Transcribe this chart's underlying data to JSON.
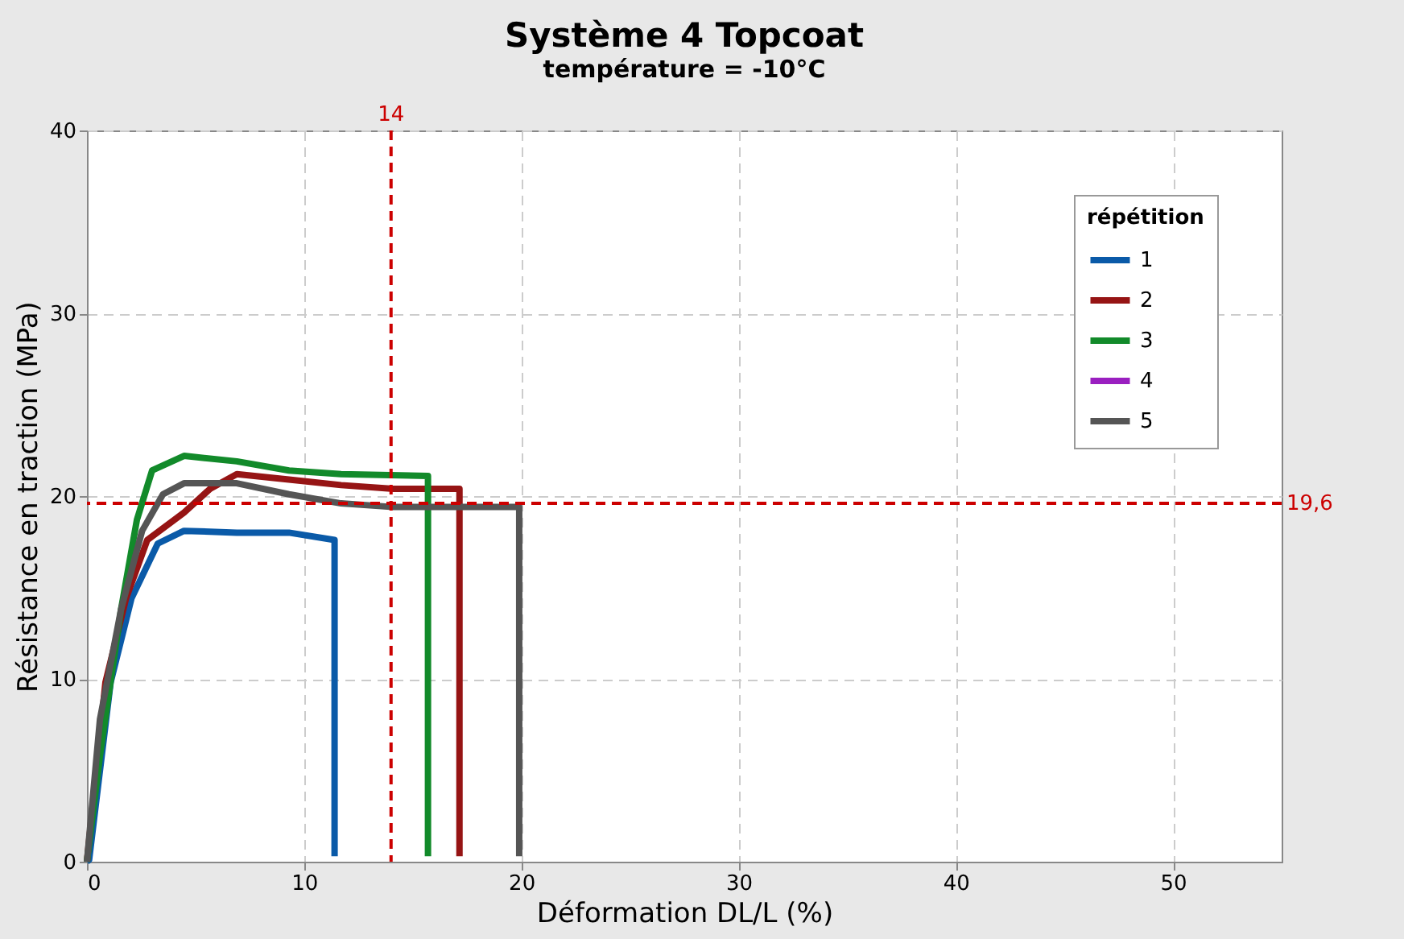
{
  "chart_data": {
    "type": "line",
    "title": "Système 4 Topcoat",
    "subtitle": "température = -10°C",
    "xlabel": "Déformation DL/L (%)",
    "ylabel": "Résistance en traction (MPa)",
    "legend_title": "répétition",
    "xlim": [
      0,
      55
    ],
    "ylim": [
      0,
      40
    ],
    "xticks": [
      0,
      10,
      20,
      30,
      40,
      50
    ],
    "yticks": [
      0,
      10,
      20,
      30,
      40
    ],
    "grid": true,
    "legend": "top right",
    "line_style": "solid",
    "marker": "none",
    "ref_lines": [
      {
        "axis": "x",
        "value": 14,
        "label": "14",
        "color": "#cc0000",
        "line_style": "dashed"
      },
      {
        "axis": "y",
        "value": 19.6,
        "label": "19,6",
        "color": "#cc0000",
        "line_style": "dashed"
      }
    ],
    "series": [
      {
        "name": "1",
        "color": "#0a5aa8",
        "x": [
          0,
          0.1,
          1.09,
          2.05,
          3.26,
          4.47,
          6.9,
          9.3,
          11.4,
          11.4
        ],
        "values": [
          0,
          0.1,
          9.8,
          14.4,
          17.4,
          18.1,
          18.0,
          18.0,
          17.6,
          0.3
        ]
      },
      {
        "name": "2",
        "color": "#961414",
        "x": [
          0,
          0.85,
          1.8,
          2.78,
          4.47,
          5.67,
          6.9,
          9.3,
          11.7,
          14.1,
          17.15,
          17.15
        ],
        "values": [
          0,
          9.8,
          14.4,
          17.6,
          19.1,
          20.4,
          21.2,
          20.9,
          20.6,
          20.4,
          20.4,
          0.3
        ]
      },
      {
        "name": "3",
        "color": "#128a2a",
        "x": [
          0,
          0.6,
          1.57,
          2.3,
          3.0,
          4.47,
          6.9,
          9.3,
          11.7,
          15.7,
          15.7
        ],
        "values": [
          0,
          5.8,
          13.8,
          18.7,
          21.4,
          22.2,
          21.9,
          21.4,
          21.2,
          21.1,
          0.3
        ]
      },
      {
        "name": "4",
        "color": "#9a1fc0"
      },
      {
        "name": "5",
        "color": "#555555",
        "x": [
          0,
          0.6,
          1.57,
          2.54,
          3.5,
          4.47,
          6.9,
          9.3,
          11.7,
          14.1,
          19.9,
          19.9
        ],
        "values": [
          0,
          7.8,
          13.8,
          18.1,
          20.1,
          20.7,
          20.7,
          20.1,
          19.6,
          19.4,
          19.4,
          0.3
        ]
      }
    ]
  }
}
